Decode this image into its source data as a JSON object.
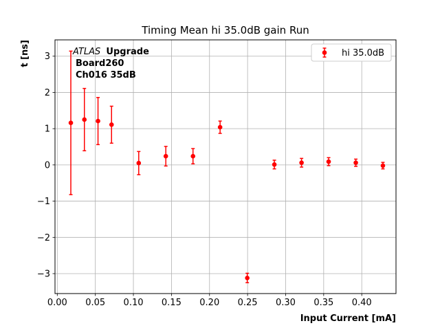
{
  "chart_data": {
    "type": "scatter",
    "title": "Timing Mean hi 35.0dB gain Run",
    "xlabel": "Input Current [mA]",
    "ylabel": "t [ns]",
    "xlim": [
      -0.003,
      0.445
    ],
    "ylim": [
      -3.55,
      3.45
    ],
    "xticks": [
      0.0,
      0.05,
      0.1,
      0.15,
      0.2,
      0.25,
      0.3,
      0.35,
      0.4
    ],
    "xtick_labels": [
      "0.00",
      "0.05",
      "0.10",
      "0.15",
      "0.20",
      "0.25",
      "0.30",
      "0.35",
      "0.40"
    ],
    "yticks": [
      -3,
      -2,
      -1,
      0,
      1,
      2,
      3
    ],
    "ytick_labels": [
      "−3",
      "−2",
      "−1",
      "0",
      "1",
      "2",
      "3"
    ],
    "grid": true,
    "legend_position": "top-right",
    "series": [
      {
        "name": "hi 35.0dB",
        "color": "#ff0000",
        "marker": "circle",
        "points": [
          {
            "x": 0.0178,
            "y": 1.16,
            "err": 1.98
          },
          {
            "x": 0.0356,
            "y": 1.25,
            "err": 0.86
          },
          {
            "x": 0.0535,
            "y": 1.21,
            "err": 0.65
          },
          {
            "x": 0.0713,
            "y": 1.11,
            "err": 0.51
          },
          {
            "x": 0.107,
            "y": 0.05,
            "err": 0.32
          },
          {
            "x": 0.1426,
            "y": 0.24,
            "err": 0.27
          },
          {
            "x": 0.1783,
            "y": 0.24,
            "err": 0.21
          },
          {
            "x": 0.2139,
            "y": 1.04,
            "err": 0.17
          },
          {
            "x": 0.2496,
            "y": -3.12,
            "err": 0.13
          },
          {
            "x": 0.2852,
            "y": 0.01,
            "err": 0.12
          },
          {
            "x": 0.3209,
            "y": 0.06,
            "err": 0.12
          },
          {
            "x": 0.3565,
            "y": 0.09,
            "err": 0.11
          },
          {
            "x": 0.3922,
            "y": 0.06,
            "err": 0.1
          },
          {
            "x": 0.4278,
            "y": -0.02,
            "err": 0.09
          }
        ]
      }
    ],
    "annotation": {
      "atlas": "ATLAS",
      "upgrade": "Upgrade",
      "line2": "Board260",
      "line3": "Ch016 35dB"
    }
  }
}
